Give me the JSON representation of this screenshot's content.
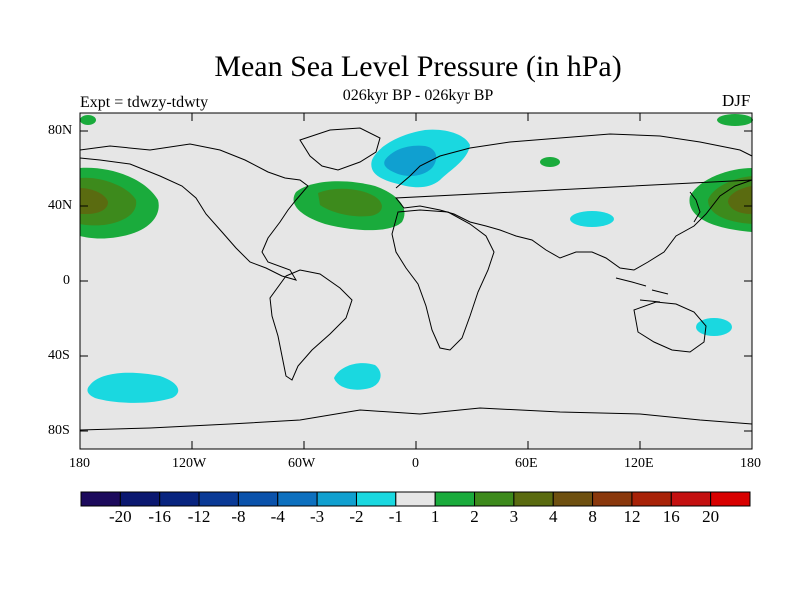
{
  "title": "Mean Sea Level Pressure (in hPa)",
  "subtitle": "026kyr BP - 026kyr BP",
  "experiment": "Expt = tdwzy-tdwty",
  "season": "DJF",
  "axes": {
    "lat_ticks": [
      "80N",
      "40N",
      "0",
      "40S",
      "80S"
    ],
    "lon_ticks": [
      "180",
      "120W",
      "60W",
      "0",
      "60E",
      "120E",
      "180"
    ]
  },
  "colorbar": {
    "labels": [
      "-20",
      "-16",
      "-12",
      "-8",
      "-4",
      "-3",
      "-2",
      "-1",
      "1",
      "2",
      "3",
      "4",
      "8",
      "12",
      "16",
      "20"
    ],
    "colors": [
      "#1c0a5c",
      "#0b1870",
      "#08247f",
      "#0a3a96",
      "#0a52ab",
      "#0d70bf",
      "#10a0d0",
      "#1ad8e0",
      "#e6e6e6",
      "#1aab3c",
      "#3d8a1c",
      "#5a6b10",
      "#6e5010",
      "#8a380c",
      "#a82208",
      "#c41010",
      "#d80000"
    ]
  },
  "colors": {
    "land_background": "#e6e6e6",
    "positive_anomaly": "#1aab3c",
    "positive_anomaly_strong": "#3d8a1c",
    "positive_anomaly_core": "#5a6b10",
    "negative_anomaly": "#1ad8e0",
    "negative_anomaly_strong": "#10a0d0"
  }
}
